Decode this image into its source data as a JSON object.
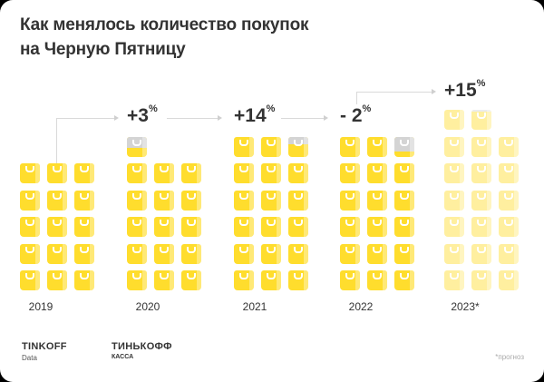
{
  "title_line1": "Как менялось количество покупок",
  "title_line2": "на Черную Пятницу",
  "chart_data": {
    "type": "pictograph",
    "title": "Как менялось количество покупок на Черную Пятницу",
    "categories": [
      "2019",
      "2020",
      "2021",
      "2022",
      "2023*"
    ],
    "bag_units": [
      15,
      15.45,
      17.6,
      17.25,
      19.9
    ],
    "changes": [
      {
        "from": "2019",
        "to": "2020",
        "label": "+3",
        "unit": "%"
      },
      {
        "from": "2020",
        "to": "2021",
        "label": "+14",
        "unit": "%"
      },
      {
        "from": "2021",
        "to": "2022",
        "label": "- 2",
        "unit": "%"
      },
      {
        "from": "2022",
        "to": "2023*",
        "label": "+15",
        "unit": "%"
      }
    ],
    "forecast_category": "2023*",
    "colors": {
      "bag": "#ffdd2d",
      "empty": "#d4d4d4"
    }
  },
  "footer": {
    "logo1": "TINKOFF",
    "logo1_sub": "Data",
    "logo2": "ТИНЬКОФФ",
    "logo2_sub": "КАССА",
    "note": "*прогноз"
  }
}
